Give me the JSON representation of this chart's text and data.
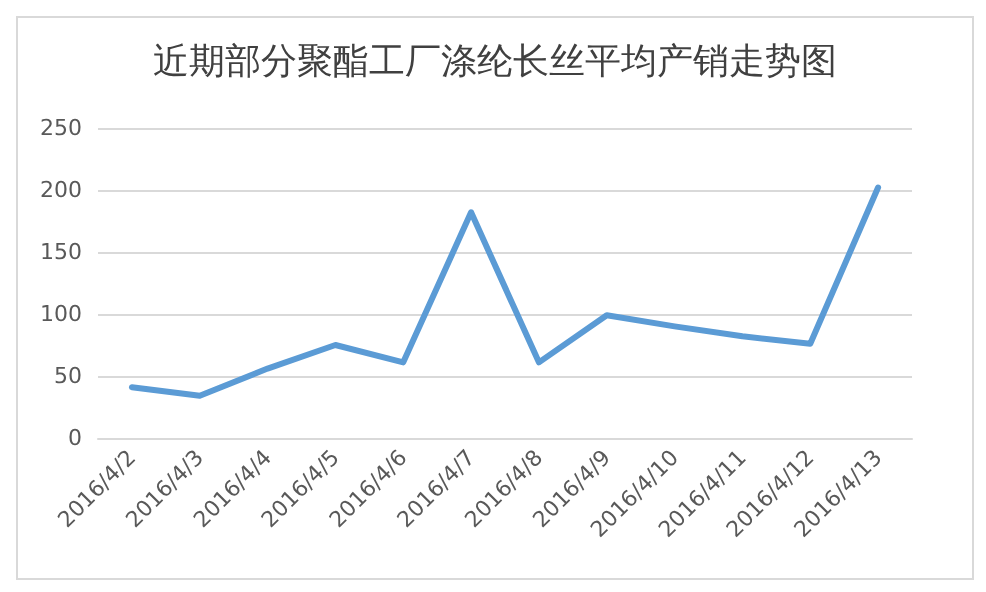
{
  "chart_data": {
    "type": "line",
    "title": "近期部分聚酯工厂涤纶长丝平均产销走势图",
    "categories": [
      "2016/4/2",
      "2016/4/3",
      "2016/4/4",
      "2016/4/5",
      "2016/4/6",
      "2016/4/7",
      "2016/4/8",
      "2016/4/9",
      "2016/4/10",
      "2016/4/11",
      "2016/4/12",
      "2016/4/13"
    ],
    "series": [
      {
        "color": "#5b9bd5",
        "values": [
          41,
          34,
          56,
          75,
          61,
          182,
          61,
          99,
          90,
          82,
          76,
          202
        ]
      }
    ],
    "ylim": [
      0,
      250
    ],
    "yticks": [
      0,
      50,
      100,
      150,
      200,
      250
    ],
    "grid": "y",
    "marker": "none",
    "line_style": "solid"
  }
}
